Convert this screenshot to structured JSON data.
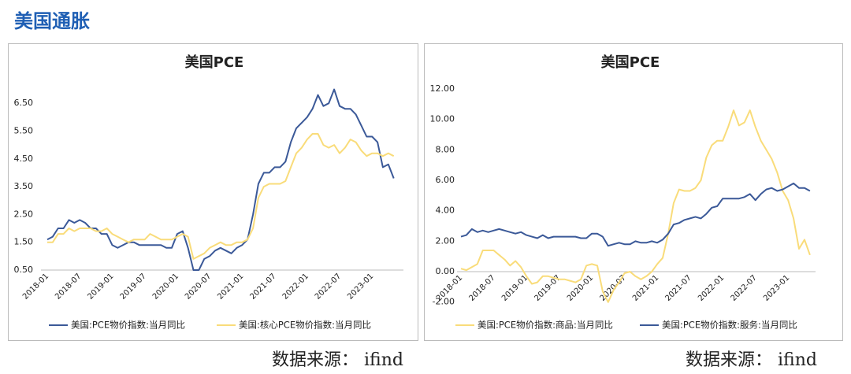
{
  "title": "美国通胀",
  "chart_data": [
    {
      "type": "line",
      "title": "美国PCE",
      "source": "数据来源： ifind",
      "categories": [
        "2018-01",
        null,
        null,
        null,
        null,
        null,
        "2018-07",
        null,
        null,
        null,
        null,
        null,
        "2019-01",
        null,
        null,
        null,
        null,
        null,
        "2019-07",
        null,
        null,
        null,
        null,
        null,
        "2020-01",
        null,
        null,
        null,
        null,
        null,
        "2020-07",
        null,
        null,
        null,
        null,
        null,
        "2021-01",
        null,
        null,
        null,
        null,
        null,
        "2021-07",
        null,
        null,
        null,
        null,
        null,
        "2022-01",
        null,
        null,
        null,
        null,
        null,
        "2022-07",
        null,
        null,
        null,
        null,
        null,
        "2023-01",
        null,
        null,
        null,
        null
      ],
      "series": [
        {
          "name": "美国:PCE物价指数:当月同比",
          "color": "#3b5998",
          "values": [
            1.6,
            1.7,
            2.0,
            2.0,
            2.3,
            2.2,
            2.3,
            2.2,
            2.0,
            2.0,
            1.8,
            1.8,
            1.4,
            1.3,
            1.4,
            1.5,
            1.5,
            1.4,
            1.4,
            1.4,
            1.4,
            1.4,
            1.3,
            1.3,
            1.8,
            1.9,
            1.3,
            0.5,
            0.5,
            0.9,
            1.0,
            1.2,
            1.3,
            1.2,
            1.1,
            1.3,
            1.4,
            1.6,
            2.5,
            3.6,
            4.0,
            4.0,
            4.2,
            4.2,
            4.4,
            5.1,
            5.6,
            5.8,
            6.0,
            6.3,
            6.8,
            6.4,
            6.5,
            7.0,
            6.4,
            6.3,
            6.3,
            6.1,
            5.7,
            5.3,
            5.3,
            5.1,
            4.2,
            4.3,
            3.8
          ]
        },
        {
          "name": "美国:核心PCE物价指数:当月同比",
          "color": "#f9dc7a",
          "values": [
            1.5,
            1.5,
            1.8,
            1.8,
            2.0,
            1.9,
            2.0,
            2.0,
            2.0,
            1.9,
            1.9,
            2.0,
            1.8,
            1.7,
            1.6,
            1.5,
            1.6,
            1.6,
            1.6,
            1.8,
            1.7,
            1.6,
            1.6,
            1.6,
            1.7,
            1.8,
            1.7,
            0.9,
            1.0,
            1.1,
            1.3,
            1.4,
            1.5,
            1.4,
            1.4,
            1.5,
            1.5,
            1.6,
            2.0,
            3.1,
            3.5,
            3.6,
            3.6,
            3.6,
            3.7,
            4.2,
            4.7,
            4.9,
            5.2,
            5.4,
            5.4,
            5.0,
            4.9,
            5.0,
            4.7,
            4.9,
            5.2,
            5.1,
            4.8,
            4.6,
            4.7,
            4.7,
            4.6,
            4.7,
            4.6
          ]
        }
      ],
      "ylim": [
        0.5,
        7.0
      ],
      "yticks": [
        {
          "value": 0.5,
          "label": "0.50"
        },
        {
          "value": 1.5,
          "label": "1.50"
        },
        {
          "value": 2.5,
          "label": "2.50"
        },
        {
          "value": 3.5,
          "label": "3.50"
        },
        {
          "value": 4.5,
          "label": "4.50"
        },
        {
          "value": 5.5,
          "label": "5.50"
        },
        {
          "value": 6.5,
          "label": "6.50"
        }
      ],
      "grid": false,
      "legend": "bottom"
    },
    {
      "type": "line",
      "title": "美国PCE",
      "source": "数据来源： ifind",
      "categories": [
        "2018-01",
        null,
        null,
        null,
        null,
        null,
        "2018-07",
        null,
        null,
        null,
        null,
        null,
        "2019-01",
        null,
        null,
        null,
        null,
        null,
        "2019-07",
        null,
        null,
        null,
        null,
        null,
        "2020-01",
        null,
        null,
        null,
        null,
        null,
        "2020-07",
        null,
        null,
        null,
        null,
        null,
        "2021-01",
        null,
        null,
        null,
        null,
        null,
        "2021-07",
        null,
        null,
        null,
        null,
        null,
        "2022-01",
        null,
        null,
        null,
        null,
        null,
        "2022-07",
        null,
        null,
        null,
        null,
        null,
        "2023-01",
        null,
        null,
        null,
        null
      ],
      "series": [
        {
          "name": "美国:PCE物价指数:商品:当月同比",
          "color": "#f9dc7a",
          "values": [
            0.2,
            0.1,
            0.3,
            0.5,
            1.4,
            1.4,
            1.4,
            1.1,
            0.8,
            0.4,
            0.7,
            0.3,
            -0.3,
            -0.8,
            -0.7,
            -0.3,
            -0.3,
            -0.4,
            -0.5,
            -0.5,
            -0.6,
            -0.7,
            -0.5,
            0.4,
            0.5,
            0.4,
            -1.3,
            -2.0,
            -1.2,
            -0.7,
            -0.1,
            0.0,
            -0.3,
            -0.5,
            -0.3,
            0.0,
            0.5,
            0.9,
            2.5,
            4.5,
            5.4,
            5.3,
            5.3,
            5.5,
            6.0,
            7.5,
            8.3,
            8.6,
            8.6,
            9.5,
            10.6,
            9.6,
            9.8,
            10.6,
            9.5,
            8.6,
            8.0,
            7.4,
            6.5,
            5.3,
            4.7,
            3.5,
            1.5,
            2.1,
            1.1
          ]
        },
        {
          "name": "美国:PCE物价指数:服务:当月同比",
          "color": "#3b5998",
          "values": [
            2.3,
            2.4,
            2.8,
            2.6,
            2.7,
            2.6,
            2.7,
            2.8,
            2.7,
            2.6,
            2.5,
            2.6,
            2.4,
            2.3,
            2.2,
            2.4,
            2.2,
            2.3,
            2.3,
            2.3,
            2.3,
            2.3,
            2.2,
            2.2,
            2.5,
            2.5,
            2.3,
            1.7,
            1.8,
            1.9,
            1.8,
            1.8,
            2.0,
            1.9,
            1.9,
            2.0,
            1.9,
            2.1,
            2.5,
            3.1,
            3.2,
            3.4,
            3.5,
            3.6,
            3.5,
            3.8,
            4.2,
            4.3,
            4.8,
            4.8,
            4.8,
            4.8,
            4.9,
            5.1,
            4.7,
            5.1,
            5.4,
            5.5,
            5.3,
            5.4,
            5.6,
            5.8,
            5.5,
            5.5,
            5.3
          ]
        }
      ],
      "ylim": [
        -2,
        12
      ],
      "yticks": [
        {
          "value": -2,
          "label": "-2.00"
        },
        {
          "value": 0,
          "label": "0.00"
        },
        {
          "value": 2,
          "label": "2.00"
        },
        {
          "value": 4,
          "label": "4.00"
        },
        {
          "value": 6,
          "label": "6.00"
        },
        {
          "value": 8,
          "label": "8.00"
        },
        {
          "value": 10,
          "label": "10.00"
        },
        {
          "value": 12,
          "label": "12.00"
        }
      ],
      "grid": false,
      "legend": "bottom"
    }
  ]
}
